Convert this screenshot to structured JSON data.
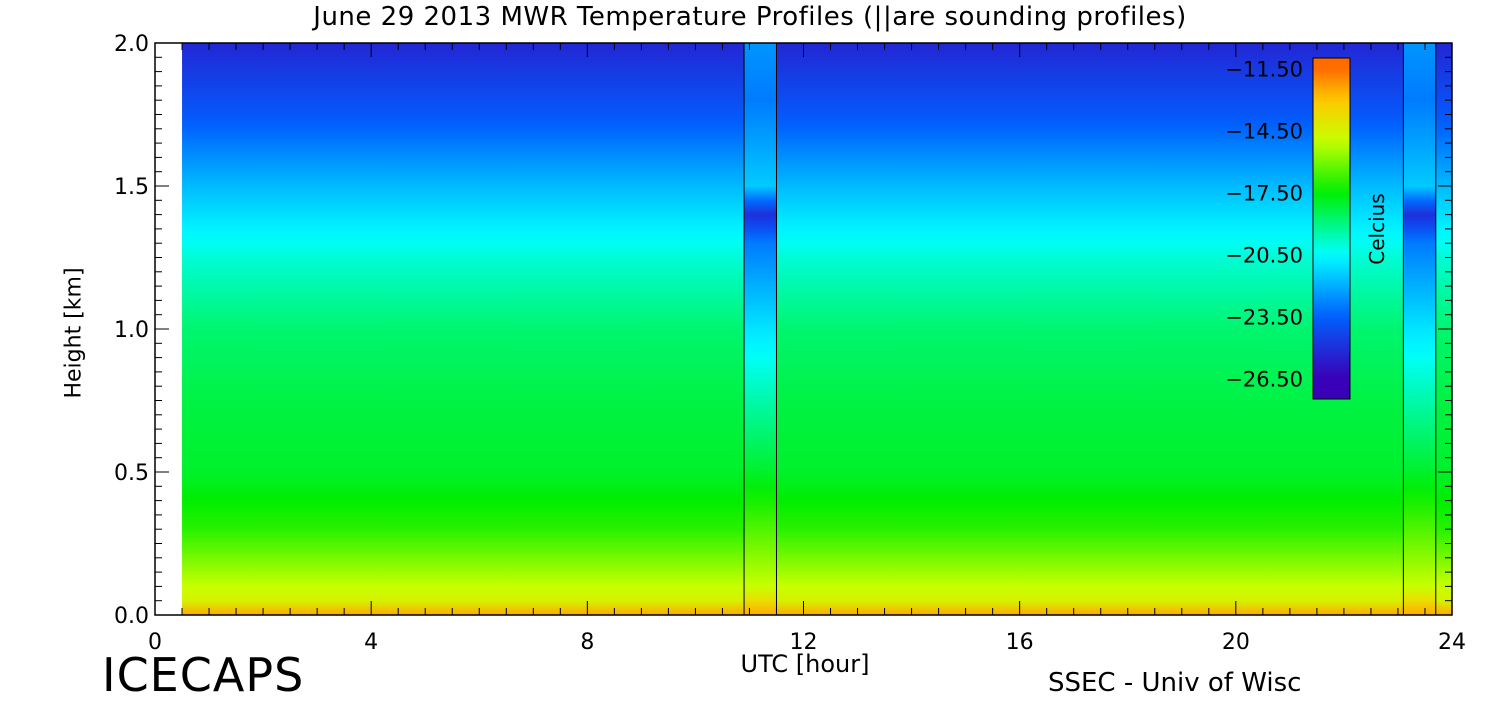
{
  "chart_data": {
    "type": "heatmap",
    "title": "June 29 2013 MWR Temperature Profiles (||are sounding profiles)",
    "xlabel": "UTC [hour]",
    "ylabel": "Height [km]",
    "xlim": [
      0,
      24
    ],
    "ylim": [
      0,
      2
    ],
    "x_ticks": [
      "0",
      "4",
      "8",
      "12",
      "16",
      "20",
      "24"
    ],
    "y_ticks": [
      "0.0",
      "0.5",
      "1.0",
      "1.5",
      "2.0"
    ],
    "colorbar": {
      "label": "Celcius",
      "ticks": [
        "-11.50",
        "-14.50",
        "-17.50",
        "-20.50",
        "-23.50",
        "-26.50"
      ],
      "range": [
        -27.5,
        -11.0
      ]
    },
    "sounding_times_utc": [
      10.9,
      11.5,
      23.1,
      23.7
    ],
    "sounding_profile": {
      "heights_km": [
        0.0,
        0.1,
        0.5,
        1.0,
        1.3,
        1.4,
        1.5,
        1.8,
        2.0
      ],
      "temperatures_c": [
        -12.5,
        -15.0,
        -18.0,
        -21.0,
        -23.0,
        -25.0,
        -21.5,
        -23.0,
        -22.5
      ]
    },
    "representative_profile": {
      "heights_km": [
        0.0,
        0.05,
        0.15,
        0.3,
        0.5,
        0.75,
        1.0,
        1.25,
        1.5,
        1.75,
        2.0
      ],
      "temperatures_c": [
        -12.5,
        -14.5,
        -15.5,
        -17.0,
        -18.0,
        -18.3,
        -18.8,
        -20.0,
        -21.8,
        -23.8,
        -25.3
      ]
    },
    "colormap_stops": [
      {
        "value": -11.5,
        "color": "#ff6a00"
      },
      {
        "value": -13.0,
        "color": "#ffc800"
      },
      {
        "value": -15.0,
        "color": "#c8ff00"
      },
      {
        "value": -17.5,
        "color": "#00ee00"
      },
      {
        "value": -20.5,
        "color": "#00ffff"
      },
      {
        "value": -23.5,
        "color": "#0060ff"
      },
      {
        "value": -26.5,
        "color": "#3a00b8"
      }
    ]
  },
  "footer": {
    "logo": "ICECAPS",
    "credit": "SSEC - Univ of Wisc"
  }
}
